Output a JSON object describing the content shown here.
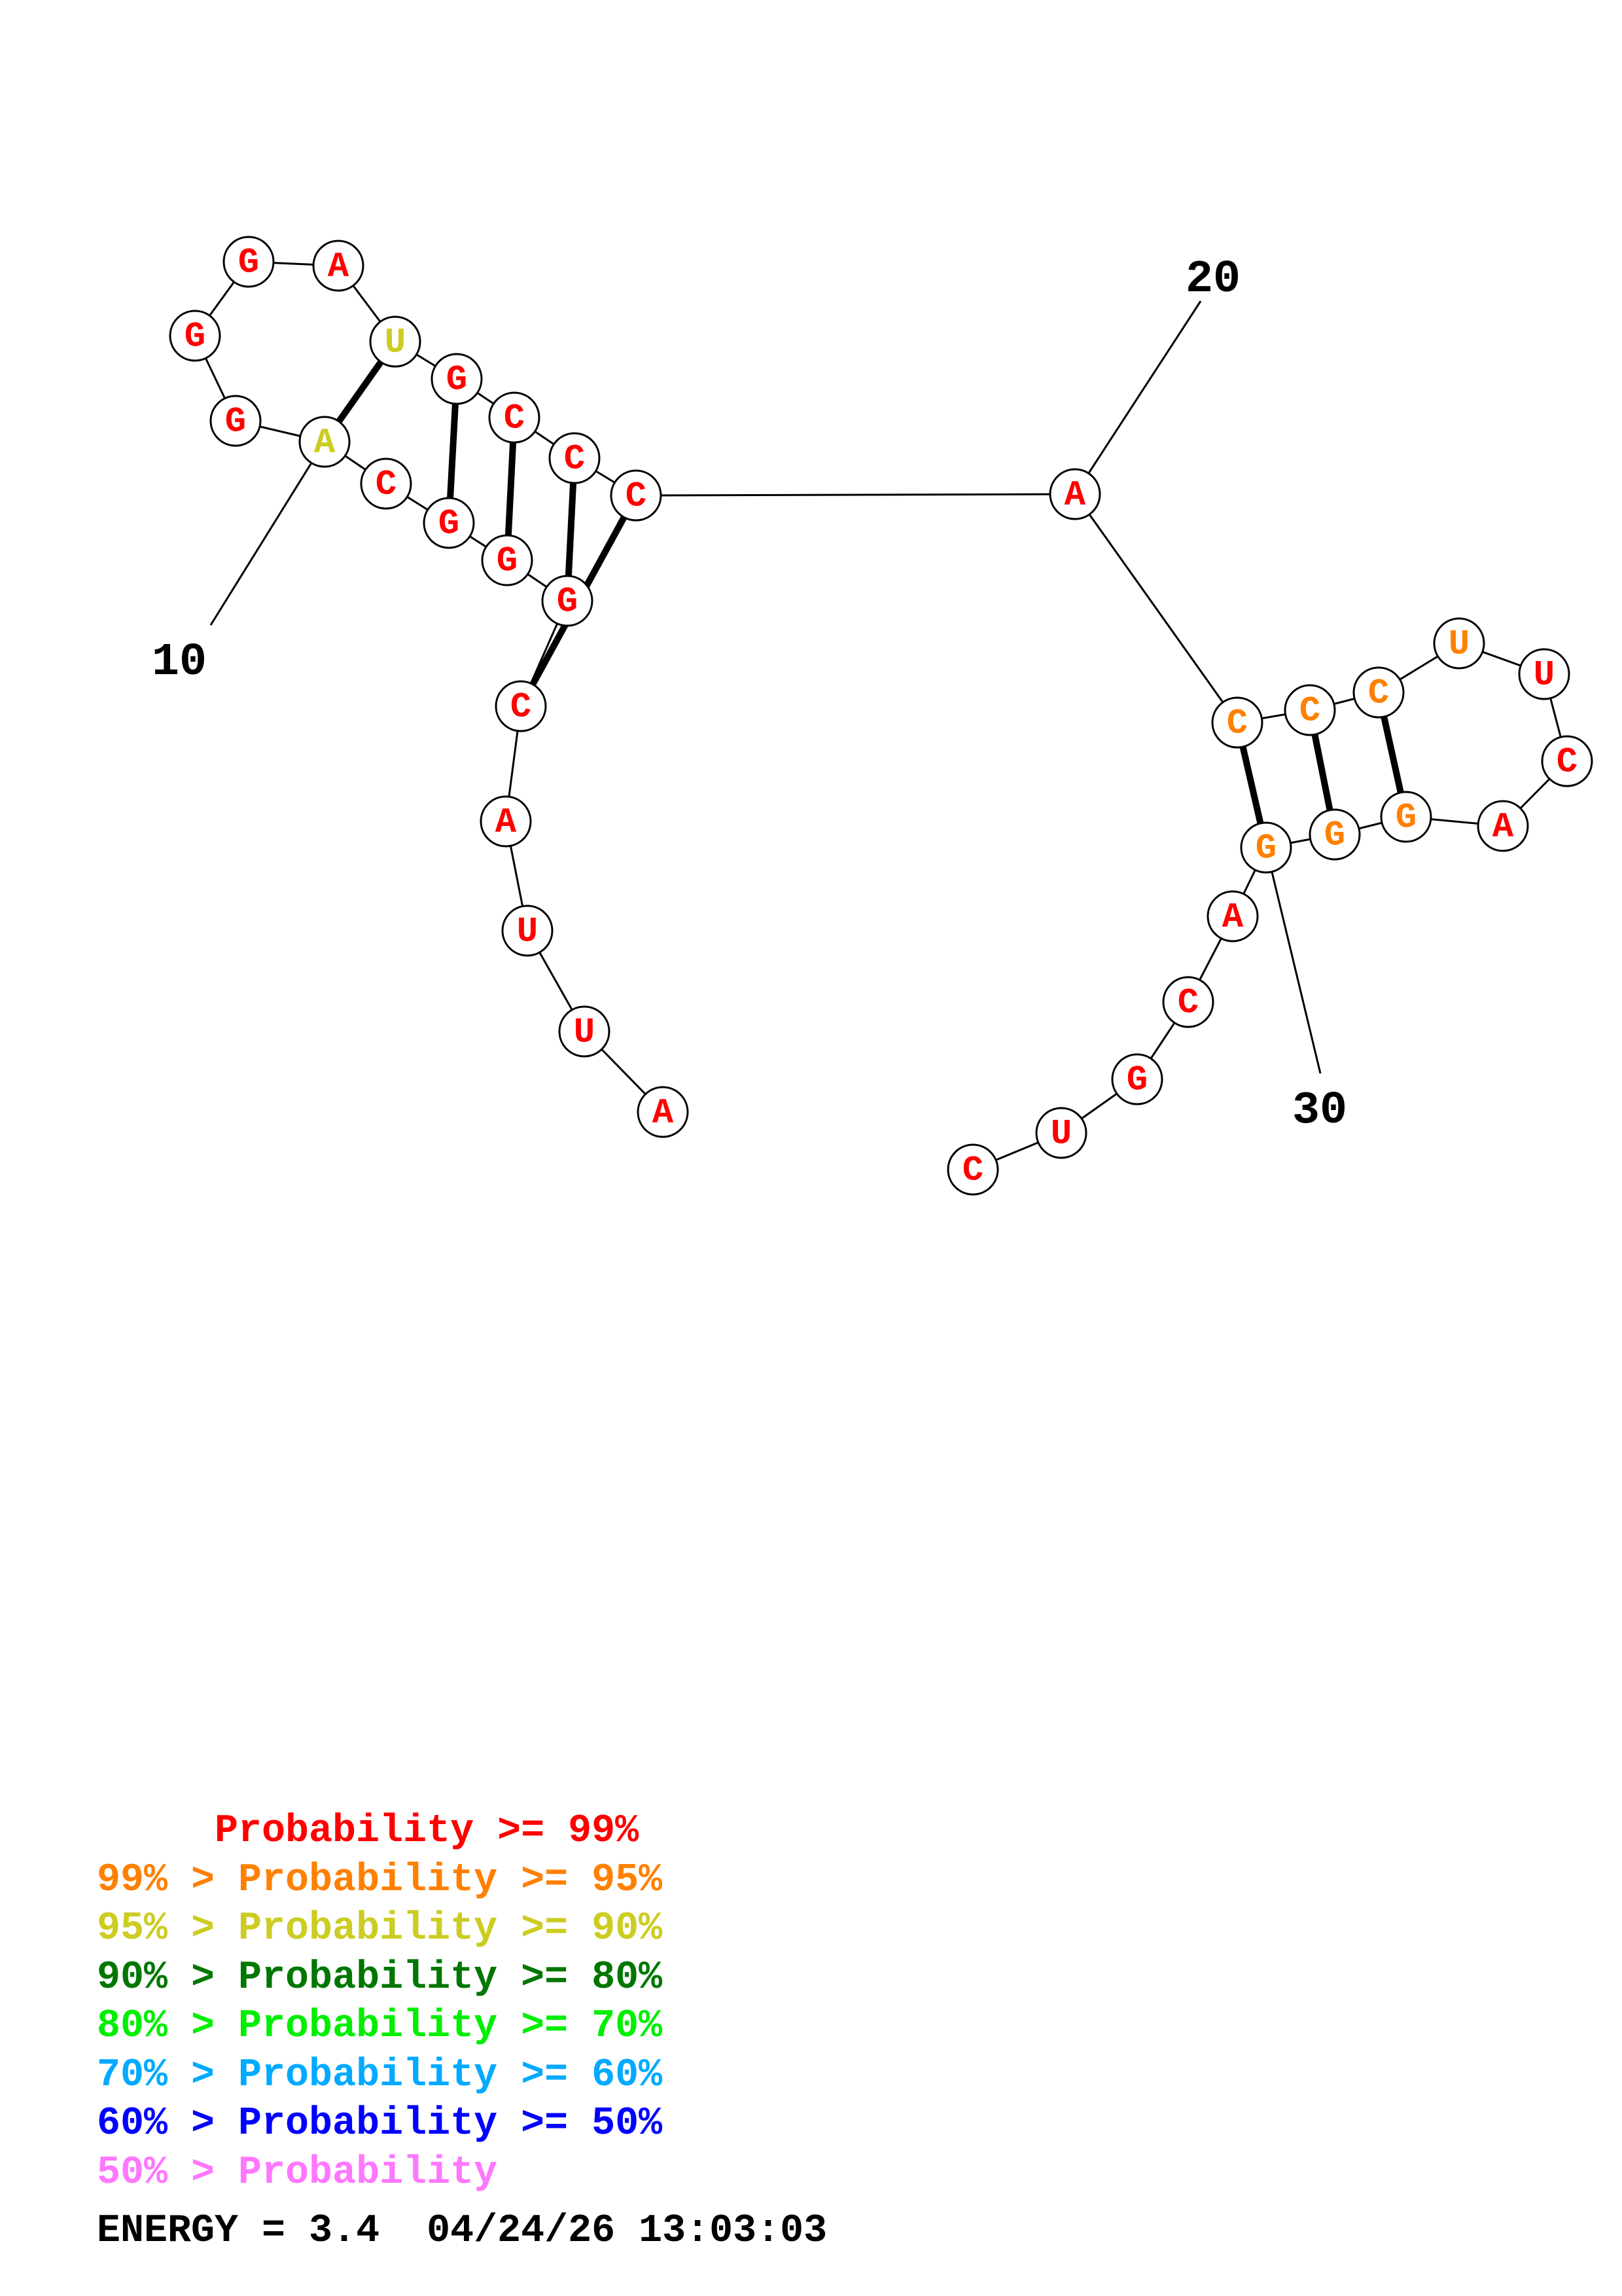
{
  "colors": {
    "p99": "#ff0000",
    "p95": "#ff8000",
    "p90": "#cccc22",
    "p80": "#007700",
    "p70": "#00ee00",
    "p60": "#00aaff",
    "p50": "#0000ff",
    "plow": "#ff77ff"
  },
  "sequence": [
    {
      "base": "A",
      "prob_class": "p99"
    },
    {
      "base": "U",
      "prob_class": "p99"
    },
    {
      "base": "U",
      "prob_class": "p99"
    },
    {
      "base": "A",
      "prob_class": "p99"
    },
    {
      "base": "C",
      "prob_class": "p99"
    },
    {
      "base": "G",
      "prob_class": "p99"
    },
    {
      "base": "G",
      "prob_class": "p99"
    },
    {
      "base": "G",
      "prob_class": "p99"
    },
    {
      "base": "C",
      "prob_class": "p99"
    },
    {
      "base": "A",
      "prob_class": "p90"
    },
    {
      "base": "G",
      "prob_class": "p99"
    },
    {
      "base": "G",
      "prob_class": "p99"
    },
    {
      "base": "G",
      "prob_class": "p99"
    },
    {
      "base": "A",
      "prob_class": "p99"
    },
    {
      "base": "U",
      "prob_class": "p90"
    },
    {
      "base": "G",
      "prob_class": "p99"
    },
    {
      "base": "C",
      "prob_class": "p99"
    },
    {
      "base": "C",
      "prob_class": "p99"
    },
    {
      "base": "C",
      "prob_class": "p99"
    },
    {
      "base": "A",
      "prob_class": "p99"
    },
    {
      "base": "C",
      "prob_class": "p95"
    },
    {
      "base": "C",
      "prob_class": "p95"
    },
    {
      "base": "C",
      "prob_class": "p95"
    },
    {
      "base": "U",
      "prob_class": "p95"
    },
    {
      "base": "U",
      "prob_class": "p99"
    },
    {
      "base": "C",
      "prob_class": "p99"
    },
    {
      "base": "A",
      "prob_class": "p99"
    },
    {
      "base": "G",
      "prob_class": "p95"
    },
    {
      "base": "G",
      "prob_class": "p95"
    },
    {
      "base": "G",
      "prob_class": "p95"
    },
    {
      "base": "A",
      "prob_class": "p99"
    },
    {
      "base": "C",
      "prob_class": "p99"
    },
    {
      "base": "G",
      "prob_class": "p99"
    },
    {
      "base": "U",
      "prob_class": "p99"
    },
    {
      "base": "C",
      "prob_class": "p99"
    }
  ],
  "pairs": [
    [
      5,
      19
    ],
    [
      6,
      18
    ],
    [
      7,
      17
    ],
    [
      8,
      16
    ],
    [
      10,
      15
    ],
    [
      21,
      30
    ],
    [
      22,
      29
    ],
    [
      23,
      28
    ]
  ],
  "numbering": [
    {
      "text": "10",
      "index": 10
    },
    {
      "text": "20",
      "index": 20
    },
    {
      "text": "30",
      "index": 30
    }
  ],
  "legend": [
    {
      "text": "     Probability >= 99%",
      "color_key": "p99"
    },
    {
      "text": "99% > Probability >= 95%",
      "color_key": "p95"
    },
    {
      "text": "95% > Probability >= 90%",
      "color_key": "p90"
    },
    {
      "text": "90% > Probability >= 80%",
      "color_key": "p80"
    },
    {
      "text": "80% > Probability >= 70%",
      "color_key": "p70"
    },
    {
      "text": "70% > Probability >= 60%",
      "color_key": "p60"
    },
    {
      "text": "60% > Probability >= 50%",
      "color_key": "p50"
    },
    {
      "text": "50% > Probability",
      "color_key": "plow"
    }
  ],
  "footer": {
    "energy_text": "ENERGY = 3.4  04/24/26 13:03:03"
  }
}
